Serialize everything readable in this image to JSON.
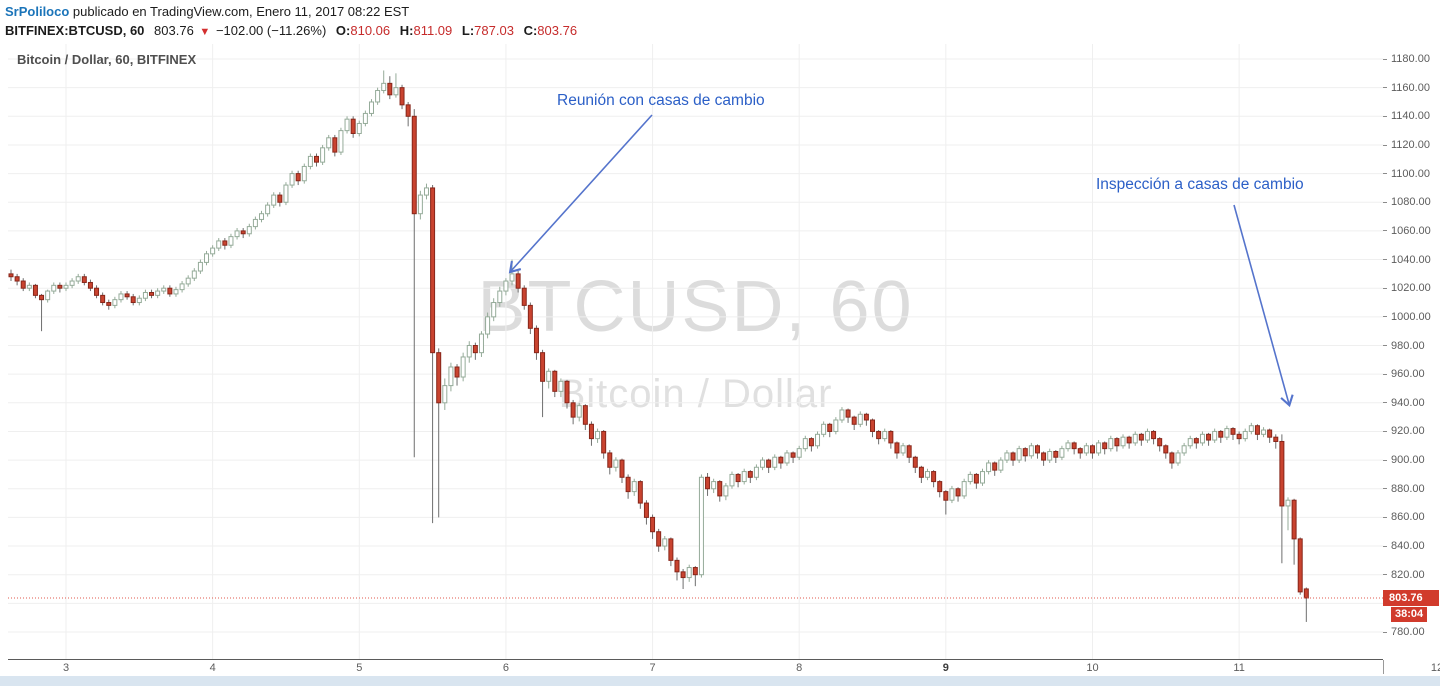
{
  "header": {
    "username": "SrPoliloco",
    "published": "publicado en TradingView.com, Enero 11, 2017 08:22 EST",
    "symbol": "BITFINEX:BTCUSD, 60",
    "last_price": "803.76",
    "direction_icon": "▼",
    "change": "−102.00 (−11.26%)",
    "ohlc": [
      {
        "label": "O:",
        "value": "810.06"
      },
      {
        "label": "H:",
        "value": "811.09"
      },
      {
        "label": "L:",
        "value": "787.03"
      },
      {
        "label": "C:",
        "value": "803.76"
      }
    ]
  },
  "chart": {
    "legend": "Bitcoin / Dollar, 60, BITFINEX",
    "watermark_title": "BTCUSD, 60",
    "watermark_subtitle": "Bitcoin / Dollar",
    "annotations": [
      {
        "text": "Reunión con casas de cambio"
      },
      {
        "text": "Inspección a casas de cambio"
      }
    ],
    "price_label": "803.76",
    "countdown": "38:04"
  },
  "colors": {
    "up_fill": "#ffffff",
    "up_border": "#95ab99",
    "up_wick": "#95ab99",
    "down_fill": "#c9432f",
    "down_border": "#87261a",
    "down_wick": "#6e6e6e",
    "grid": "#efefef",
    "last_line": "#e05a4d",
    "label_bg": "#d13b2c",
    "annotation_text": "#2b5fc7",
    "arrow": "#5574cc",
    "username_link": "#1b74b9",
    "quote_red": "#c62b2b"
  },
  "chart_data": {
    "type": "candlestick",
    "title": "Bitcoin / Dollar, 60, BITFINEX",
    "symbol": "BTCUSD",
    "interval": "60",
    "y_axis": {
      "min": 780,
      "max": 1180,
      "step": 20
    },
    "x_axis": {
      "labels": [
        {
          "label": "3"
        },
        {
          "label": "4"
        },
        {
          "label": "5"
        },
        {
          "label": "6"
        },
        {
          "label": "7"
        },
        {
          "label": "8"
        },
        {
          "label": "9",
          "bold": true
        },
        {
          "label": "10"
        },
        {
          "label": "11"
        },
        {
          "label": "12",
          "clipped": true
        }
      ]
    },
    "last": {
      "price": 803.76,
      "countdown": "38:04"
    },
    "candles": [
      [
        1030,
        1033,
        1025,
        1028
      ],
      [
        1028,
        1030,
        1022,
        1025
      ],
      [
        1025,
        1027,
        1018,
        1020
      ],
      [
        1020,
        1024,
        1018,
        1022
      ],
      [
        1022,
        1023,
        1013,
        1015
      ],
      [
        1015,
        1016,
        990,
        1012
      ],
      [
        1012,
        1019,
        1010,
        1018
      ],
      [
        1018,
        1024,
        1016,
        1022
      ],
      [
        1022,
        1024,
        1017,
        1020
      ],
      [
        1020,
        1024,
        1018,
        1022
      ],
      [
        1022,
        1027,
        1020,
        1025
      ],
      [
        1025,
        1030,
        1023,
        1028
      ],
      [
        1028,
        1030,
        1022,
        1024
      ],
      [
        1024,
        1026,
        1018,
        1020
      ],
      [
        1020,
        1022,
        1013,
        1015
      ],
      [
        1015,
        1017,
        1008,
        1010
      ],
      [
        1010,
        1012,
        1005,
        1008
      ],
      [
        1008,
        1014,
        1006,
        1012
      ],
      [
        1012,
        1018,
        1010,
        1016
      ],
      [
        1016,
        1018,
        1012,
        1014
      ],
      [
        1014,
        1016,
        1008,
        1010
      ],
      [
        1010,
        1015,
        1008,
        1013
      ],
      [
        1013,
        1019,
        1011,
        1017
      ],
      [
        1017,
        1019,
        1013,
        1015
      ],
      [
        1015,
        1020,
        1013,
        1018
      ],
      [
        1018,
        1022,
        1016,
        1020
      ],
      [
        1020,
        1022,
        1014,
        1016
      ],
      [
        1016,
        1021,
        1014,
        1019
      ],
      [
        1019,
        1025,
        1017,
        1023
      ],
      [
        1023,
        1029,
        1021,
        1027
      ],
      [
        1027,
        1034,
        1025,
        1032
      ],
      [
        1032,
        1040,
        1030,
        1038
      ],
      [
        1038,
        1046,
        1036,
        1044
      ],
      [
        1044,
        1050,
        1042,
        1048
      ],
      [
        1048,
        1055,
        1046,
        1053
      ],
      [
        1053,
        1055,
        1047,
        1050
      ],
      [
        1050,
        1058,
        1048,
        1056
      ],
      [
        1056,
        1062,
        1054,
        1060
      ],
      [
        1060,
        1062,
        1055,
        1058
      ],
      [
        1058,
        1065,
        1056,
        1063
      ],
      [
        1063,
        1070,
        1061,
        1068
      ],
      [
        1068,
        1074,
        1066,
        1072
      ],
      [
        1072,
        1080,
        1070,
        1078
      ],
      [
        1078,
        1087,
        1076,
        1085
      ],
      [
        1085,
        1087,
        1077,
        1080
      ],
      [
        1080,
        1094,
        1078,
        1092
      ],
      [
        1092,
        1102,
        1090,
        1100
      ],
      [
        1100,
        1102,
        1092,
        1095
      ],
      [
        1095,
        1107,
        1093,
        1105
      ],
      [
        1105,
        1114,
        1103,
        1112
      ],
      [
        1112,
        1114,
        1105,
        1108
      ],
      [
        1108,
        1120,
        1106,
        1118
      ],
      [
        1118,
        1127,
        1116,
        1125
      ],
      [
        1125,
        1127,
        1112,
        1115
      ],
      [
        1115,
        1132,
        1113,
        1130
      ],
      [
        1130,
        1140,
        1128,
        1138
      ],
      [
        1138,
        1140,
        1125,
        1128
      ],
      [
        1128,
        1137,
        1126,
        1135
      ],
      [
        1135,
        1144,
        1133,
        1142
      ],
      [
        1142,
        1152,
        1140,
        1150
      ],
      [
        1150,
        1160,
        1148,
        1158
      ],
      [
        1158,
        1172,
        1156,
        1163
      ],
      [
        1163,
        1168,
        1152,
        1155
      ],
      [
        1155,
        1170,
        1153,
        1160
      ],
      [
        1160,
        1162,
        1145,
        1148
      ],
      [
        1148,
        1150,
        1133,
        1140
      ],
      [
        1140,
        1145,
        902,
        1072
      ],
      [
        1072,
        1088,
        1068,
        1085
      ],
      [
        1085,
        1093,
        1082,
        1090
      ],
      [
        1090,
        1092,
        856,
        975
      ],
      [
        975,
        978,
        860,
        940
      ],
      [
        940,
        957,
        935,
        952
      ],
      [
        952,
        968,
        948,
        965
      ],
      [
        965,
        967,
        952,
        958
      ],
      [
        958,
        975,
        955,
        972
      ],
      [
        972,
        983,
        968,
        980
      ],
      [
        980,
        982,
        970,
        975
      ],
      [
        975,
        990,
        972,
        988
      ],
      [
        988,
        1003,
        985,
        1000
      ],
      [
        1000,
        1013,
        997,
        1010
      ],
      [
        1010,
        1021,
        1007,
        1018
      ],
      [
        1018,
        1027,
        1015,
        1025
      ],
      [
        1025,
        1040,
        1022,
        1030
      ],
      [
        1030,
        1032,
        1017,
        1020
      ],
      [
        1020,
        1022,
        1005,
        1008
      ],
      [
        1008,
        1010,
        988,
        992
      ],
      [
        992,
        994,
        970,
        975
      ],
      [
        975,
        977,
        930,
        955
      ],
      [
        955,
        964,
        950,
        962
      ],
      [
        962,
        963,
        944,
        948
      ],
      [
        948,
        957,
        944,
        955
      ],
      [
        955,
        956,
        936,
        940
      ],
      [
        940,
        942,
        925,
        930
      ],
      [
        930,
        940,
        927,
        938
      ],
      [
        938,
        939,
        921,
        925
      ],
      [
        925,
        927,
        910,
        915
      ],
      [
        915,
        922,
        912,
        920
      ],
      [
        920,
        921,
        901,
        905
      ],
      [
        905,
        907,
        890,
        895
      ],
      [
        895,
        902,
        892,
        900
      ],
      [
        900,
        901,
        884,
        888
      ],
      [
        888,
        890,
        873,
        878
      ],
      [
        878,
        887,
        875,
        885
      ],
      [
        885,
        886,
        866,
        870
      ],
      [
        870,
        872,
        855,
        860
      ],
      [
        860,
        862,
        845,
        850
      ],
      [
        850,
        852,
        836,
        840
      ],
      [
        840,
        847,
        837,
        845
      ],
      [
        845,
        846,
        826,
        830
      ],
      [
        830,
        832,
        816,
        822
      ],
      [
        822,
        824,
        810,
        818
      ],
      [
        818,
        827,
        815,
        825
      ],
      [
        825,
        826,
        812,
        820
      ],
      [
        820,
        890,
        818,
        888
      ],
      [
        888,
        891,
        875,
        880
      ],
      [
        880,
        887,
        877,
        885
      ],
      [
        885,
        886,
        871,
        875
      ],
      [
        875,
        884,
        872,
        882
      ],
      [
        882,
        892,
        880,
        890
      ],
      [
        890,
        891,
        881,
        885
      ],
      [
        885,
        894,
        883,
        892
      ],
      [
        892,
        893,
        884,
        888
      ],
      [
        888,
        897,
        886,
        895
      ],
      [
        895,
        902,
        893,
        900
      ],
      [
        900,
        901,
        891,
        895
      ],
      [
        895,
        904,
        893,
        902
      ],
      [
        902,
        903,
        894,
        898
      ],
      [
        898,
        907,
        896,
        905
      ],
      [
        905,
        906,
        898,
        902
      ],
      [
        902,
        910,
        900,
        908
      ],
      [
        908,
        917,
        906,
        915
      ],
      [
        915,
        916,
        906,
        910
      ],
      [
        910,
        920,
        908,
        918
      ],
      [
        918,
        927,
        916,
        925
      ],
      [
        925,
        926,
        916,
        920
      ],
      [
        920,
        930,
        918,
        928
      ],
      [
        928,
        937,
        926,
        935
      ],
      [
        935,
        936,
        926,
        930
      ],
      [
        930,
        931,
        921,
        925
      ],
      [
        925,
        934,
        923,
        932
      ],
      [
        932,
        933,
        924,
        928
      ],
      [
        928,
        929,
        916,
        920
      ],
      [
        920,
        921,
        911,
        915
      ],
      [
        915,
        922,
        913,
        920
      ],
      [
        920,
        921,
        908,
        912
      ],
      [
        912,
        913,
        901,
        905
      ],
      [
        905,
        912,
        903,
        910
      ],
      [
        910,
        911,
        898,
        902
      ],
      [
        902,
        903,
        891,
        895
      ],
      [
        895,
        896,
        884,
        888
      ],
      [
        888,
        894,
        886,
        892
      ],
      [
        892,
        893,
        881,
        885
      ],
      [
        885,
        886,
        874,
        878
      ],
      [
        878,
        879,
        862,
        872
      ],
      [
        872,
        882,
        870,
        880
      ],
      [
        880,
        881,
        871,
        875
      ],
      [
        875,
        887,
        873,
        885
      ],
      [
        885,
        892,
        883,
        890
      ],
      [
        890,
        891,
        880,
        884
      ],
      [
        884,
        894,
        882,
        892
      ],
      [
        892,
        900,
        890,
        898
      ],
      [
        898,
        899,
        889,
        893
      ],
      [
        893,
        902,
        891,
        900
      ],
      [
        900,
        907,
        898,
        905
      ],
      [
        905,
        906,
        896,
        900
      ],
      [
        900,
        910,
        898,
        908
      ],
      [
        908,
        909,
        899,
        903
      ],
      [
        903,
        912,
        901,
        910
      ],
      [
        910,
        911,
        901,
        905
      ],
      [
        905,
        906,
        896,
        900
      ],
      [
        900,
        908,
        898,
        906
      ],
      [
        906,
        907,
        898,
        902
      ],
      [
        902,
        910,
        900,
        908
      ],
      [
        908,
        914,
        906,
        912
      ],
      [
        912,
        913,
        904,
        908
      ],
      [
        908,
        909,
        901,
        905
      ],
      [
        905,
        912,
        903,
        910
      ],
      [
        910,
        911,
        901,
        905
      ],
      [
        905,
        914,
        903,
        912
      ],
      [
        912,
        913,
        904,
        908
      ],
      [
        908,
        917,
        906,
        915
      ],
      [
        915,
        916,
        906,
        910
      ],
      [
        910,
        918,
        908,
        916
      ],
      [
        916,
        917,
        908,
        912
      ],
      [
        912,
        920,
        910,
        918
      ],
      [
        918,
        919,
        910,
        914
      ],
      [
        914,
        922,
        912,
        920
      ],
      [
        920,
        921,
        911,
        915
      ],
      [
        915,
        916,
        906,
        910
      ],
      [
        910,
        911,
        901,
        905
      ],
      [
        905,
        906,
        894,
        898
      ],
      [
        898,
        907,
        896,
        905
      ],
      [
        905,
        912,
        903,
        910
      ],
      [
        910,
        917,
        908,
        915
      ],
      [
        915,
        916,
        908,
        912
      ],
      [
        912,
        920,
        910,
        918
      ],
      [
        918,
        919,
        910,
        914
      ],
      [
        914,
        922,
        912,
        920
      ],
      [
        920,
        921,
        912,
        916
      ],
      [
        916,
        924,
        914,
        922
      ],
      [
        922,
        923,
        914,
        918
      ],
      [
        918,
        920,
        911,
        915
      ],
      [
        915,
        922,
        913,
        920
      ],
      [
        920,
        926,
        918,
        924
      ],
      [
        924,
        925,
        914,
        918
      ],
      [
        918,
        923,
        916,
        921
      ],
      [
        921,
        922,
        912,
        916
      ],
      [
        916,
        918,
        908,
        913
      ],
      [
        913,
        918,
        828,
        868
      ],
      [
        868,
        874,
        851,
        872
      ],
      [
        872,
        873,
        827,
        845
      ],
      [
        845,
        846,
        806,
        808
      ],
      [
        810.06,
        811.09,
        787.03,
        803.76
      ]
    ]
  }
}
